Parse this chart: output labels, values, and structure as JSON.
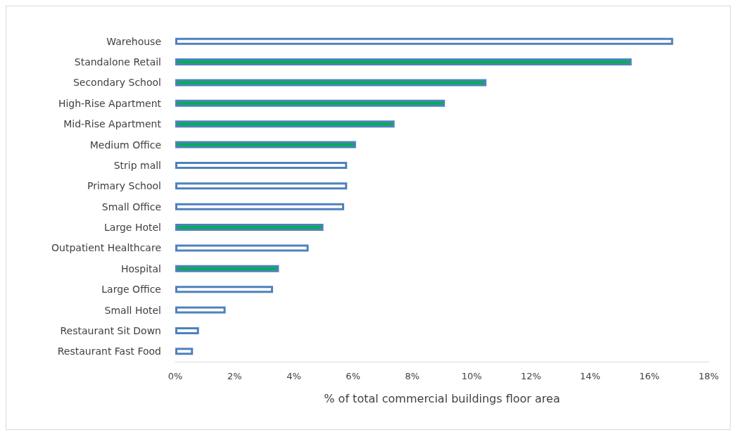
{
  "chart_data": {
    "type": "bar",
    "orientation": "horizontal",
    "xlabel": "% of total commercial buildings floor area",
    "categories": [
      "Warehouse",
      "Standalone Retail",
      "Secondary School",
      "High-Rise Apartment",
      "Mid-Rise Apartment",
      "Medium Office",
      "Strip mall",
      "Primary School",
      "Small Office",
      "Large Hotel",
      "Outpatient Healthcare",
      "Hospital",
      "Large Office",
      "Small Hotel",
      "Restaurant Sit Down",
      "Restaurant Fast Food"
    ],
    "series": [
      {
        "color": "#4f81bd",
        "values": [
          16.8,
          15.4,
          10.5,
          9.1,
          7.4,
          6.1,
          5.8,
          5.8,
          5.7,
          5.0,
          4.5,
          3.5,
          3.3,
          1.7,
          0.8,
          0.6
        ],
        "colors": [
          "#ffffff",
          "#00b050",
          "#00b050",
          "#00b050",
          "#00b050",
          "#00b050",
          "#ffffff",
          "#ffffff",
          "#ffffff",
          "#00b050",
          "#ffffff",
          "#00b050",
          "#ffffff",
          "#ffffff",
          "#ffffff",
          "#ffffff"
        ]
      }
    ],
    "xlim": [
      0,
      18
    ],
    "xticks": [
      {
        "value": 0,
        "label": "0%"
      },
      {
        "value": 2,
        "label": "2%"
      },
      {
        "value": 4,
        "label": "4%"
      },
      {
        "value": 6,
        "label": "6%"
      },
      {
        "value": 8,
        "label": "8%"
      },
      {
        "value": 10,
        "label": "10%"
      },
      {
        "value": 12,
        "label": "12%"
      },
      {
        "value": 14,
        "label": "14%"
      },
      {
        "value": 16,
        "label": "16%"
      },
      {
        "value": 18,
        "label": "18%"
      }
    ],
    "grid": false
  }
}
